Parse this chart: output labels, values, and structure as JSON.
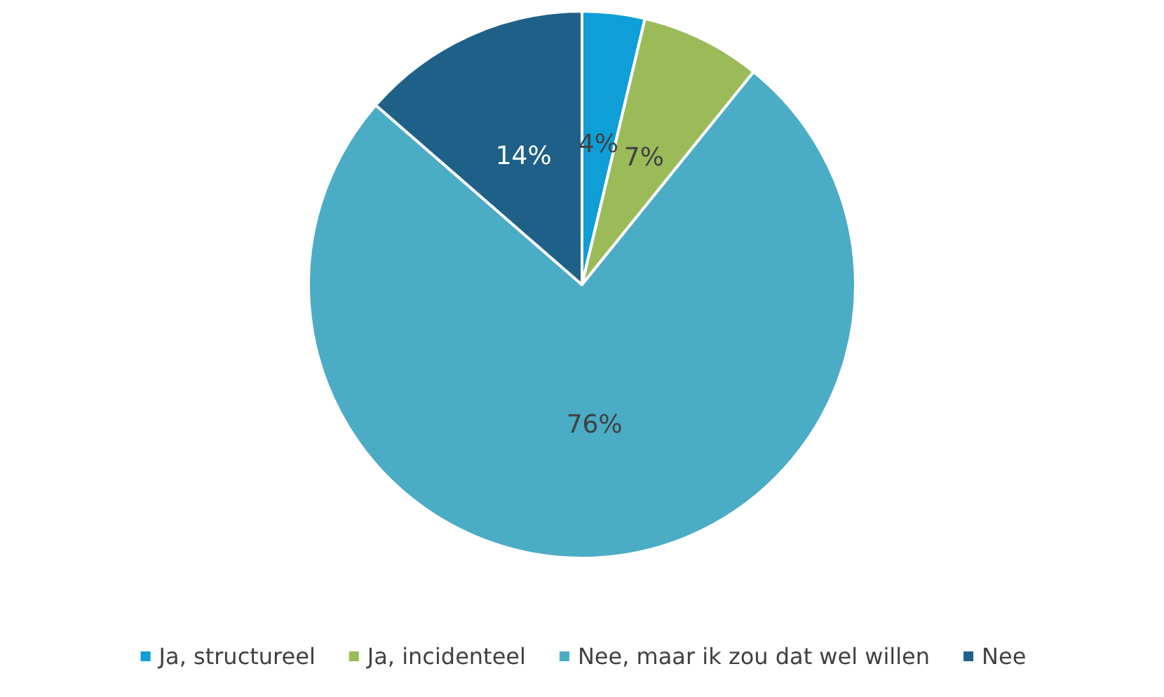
{
  "chart_data": {
    "type": "pie",
    "categories": [
      "Ja, structureel",
      "Ja, incidenteel",
      "Nee, maar ik zou dat wel willen",
      "Nee"
    ],
    "values": [
      3.7,
      7.1,
      75.6,
      13.6
    ],
    "value_labels": [
      "4%",
      "7%",
      "76%",
      "14%"
    ],
    "colors": [
      "#0f9ed5",
      "#9bbb59",
      "#4bacc6",
      "#1f6088"
    ],
    "legend": "bottom"
  }
}
